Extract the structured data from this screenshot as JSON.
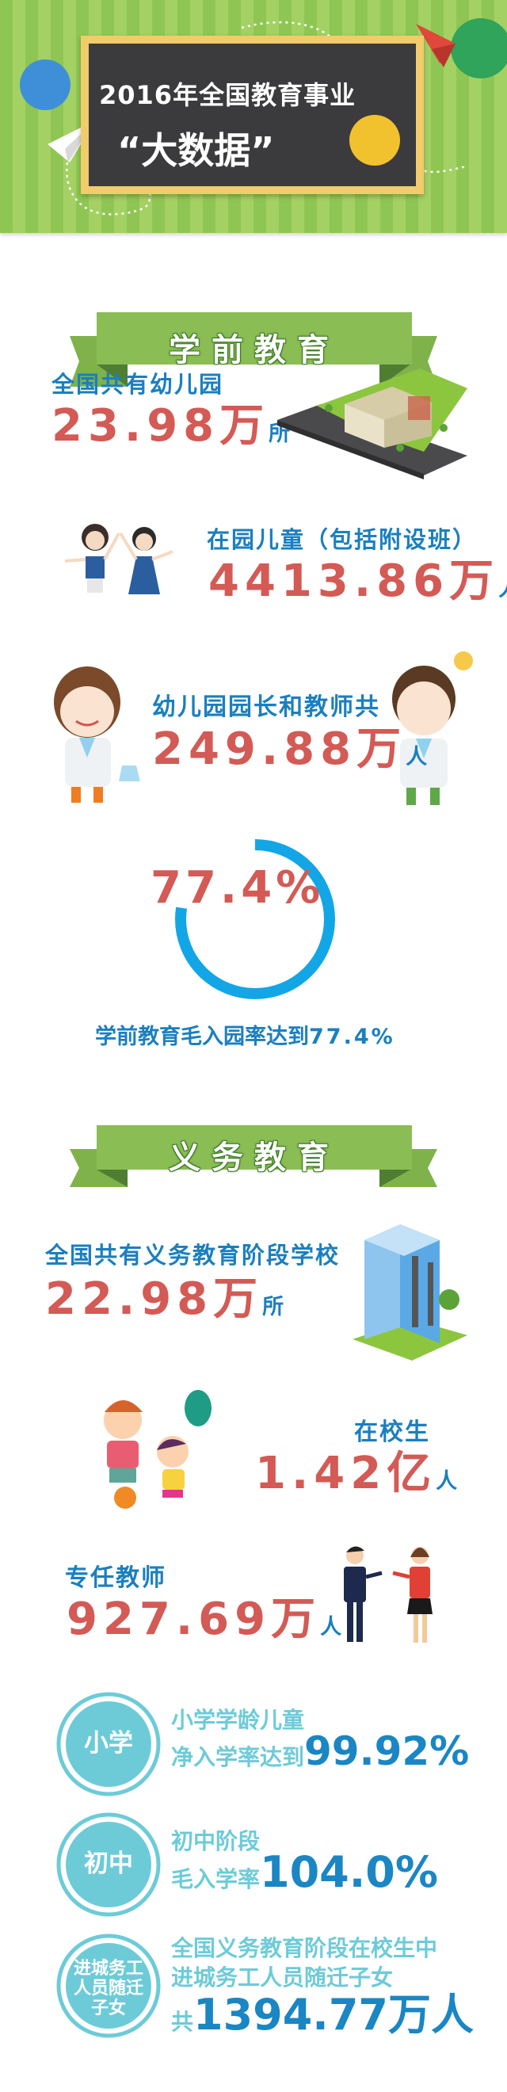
{
  "header": {
    "title_line1": "2016年全国教育事业",
    "title_line2": "“大数据”"
  },
  "preschool": {
    "ribbon": "学前教育",
    "kindergartens": {
      "label": "全国共有幼儿园",
      "value": "23.98",
      "unit_big": "万",
      "unit": "所"
    },
    "children": {
      "label": "在园儿童（包括附设班）",
      "value": "4413.86",
      "unit_big": "万",
      "unit": "人"
    },
    "teachers": {
      "label": "幼儿园园长和教师共",
      "value": "249.88",
      "unit_big": "万",
      "unit": "人"
    },
    "enrollment": {
      "value_text": "77.4%",
      "percent": 77.4,
      "caption_prefix": "学前教育毛入园率达到",
      "caption_value": "77.4%"
    }
  },
  "compulsory": {
    "ribbon": "义务教育",
    "schools": {
      "label": "全国共有义务教育阶段学校",
      "value": "22.98",
      "unit_big": "万",
      "unit": "所"
    },
    "students": {
      "label": "在校生",
      "value": "1.42",
      "unit_big": "亿",
      "unit": "人"
    },
    "teachers": {
      "label": "专任教师",
      "value": "927.69",
      "unit_big": "万",
      "unit": "人"
    },
    "primary": {
      "badge": "小学",
      "line1": "小学学龄儿童",
      "line2": "净入学率达到",
      "value": "99.92%"
    },
    "junior": {
      "badge": "初中",
      "line1": "初中阶段",
      "line2": "毛入学率",
      "value": "104.0%"
    },
    "migrant": {
      "badge_lines": [
        "进城务工",
        "人员随迁",
        "子女"
      ],
      "line1": "全国义务教育阶段在校生中",
      "line2": "进城务工人员随迁子女",
      "prefix": "共",
      "value": "1394.77万人"
    }
  },
  "colors": {
    "label_blue": "#1b7fbf",
    "number_red": "#d35a55",
    "ring_blue": "#12a6e6",
    "teal": "#6dcbd8",
    "ribbon_green": "#8bbd55",
    "header_green": "#8fc653"
  }
}
